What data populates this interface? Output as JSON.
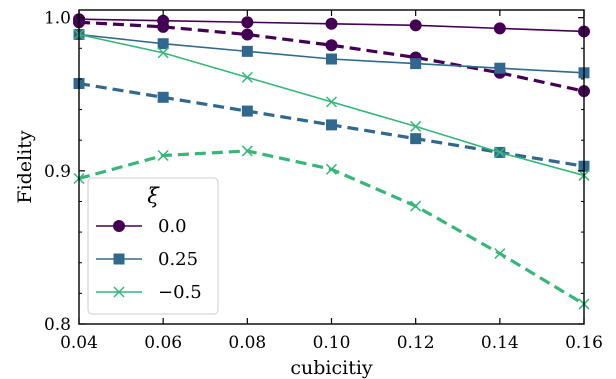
{
  "chart_data": {
    "type": "line",
    "xlabel": "cubicitiy",
    "ylabel": "Fidelity",
    "xlim": [
      0.04,
      0.16
    ],
    "ylim": [
      0.8,
      1.005
    ],
    "x_ticks": [
      0.04,
      0.06,
      0.08,
      0.1,
      0.12,
      0.14,
      0.16
    ],
    "x_tick_labels": [
      "0.04",
      "0.06",
      "0.08",
      "0.10",
      "0.12",
      "0.14",
      "0.16"
    ],
    "y_ticks": [
      0.8,
      0.9,
      1.0
    ],
    "y_tick_labels": [
      "0.8",
      "0.9",
      "1.0"
    ],
    "grid": false,
    "legend": {
      "title": "ξ",
      "placement": "lower-left",
      "entries": [
        "0.0",
        "0.25",
        "−0.5"
      ]
    },
    "x": [
      0.04,
      0.06,
      0.08,
      0.1,
      0.12,
      0.14,
      0.16
    ],
    "series": [
      {
        "name": "0.0",
        "style": "solid",
        "marker": "circle",
        "color": "#440154",
        "values": [
          0.999,
          0.998,
          0.997,
          0.996,
          0.995,
          0.993,
          0.991
        ]
      },
      {
        "name": "",
        "style": "dashed",
        "marker": "circle",
        "color": "#440154",
        "values": [
          0.997,
          0.994,
          0.989,
          0.982,
          0.974,
          0.964,
          0.952
        ]
      },
      {
        "name": "0.25",
        "style": "solid",
        "marker": "square",
        "color": "#31688e",
        "values": [
          0.989,
          0.983,
          0.978,
          0.973,
          0.97,
          0.967,
          0.964
        ]
      },
      {
        "name": "",
        "style": "dashed",
        "marker": "square",
        "color": "#31688e",
        "values": [
          0.957,
          0.948,
          0.939,
          0.93,
          0.921,
          0.912,
          0.903
        ]
      },
      {
        "name": "−0.5",
        "style": "solid",
        "marker": "x",
        "color": "#35b779",
        "values": [
          0.989,
          0.977,
          0.961,
          0.945,
          0.929,
          0.912,
          0.897
        ]
      },
      {
        "name": "",
        "style": "dashed",
        "marker": "x",
        "color": "#35b779",
        "values": [
          0.895,
          0.91,
          0.913,
          0.901,
          0.877,
          0.846,
          0.813
        ]
      }
    ]
  }
}
